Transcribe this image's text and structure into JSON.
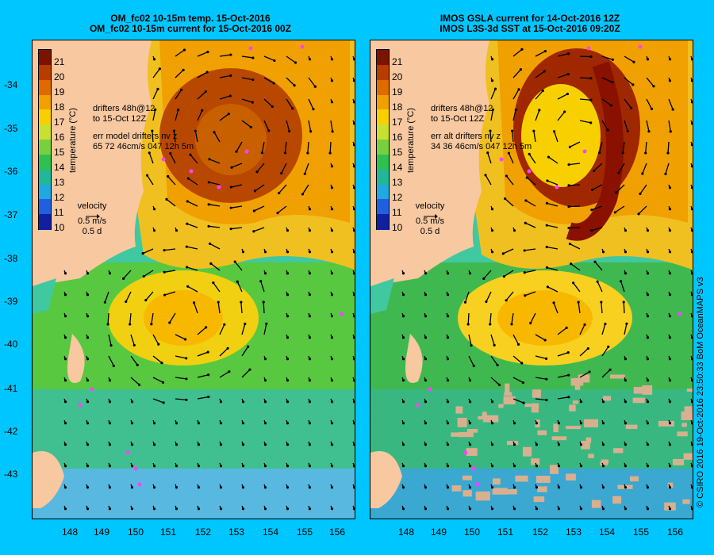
{
  "background_color": "#00c6ff",
  "land_color": "#f8c8a0",
  "left_panel": {
    "title_line1": "OM_fc02 10-15m temp. 15-Oct-2016",
    "title_line2": "OM_fc02 10-15m current for 15-Oct-2016 00Z",
    "drifters_line1": "drifters 48h@12",
    "drifters_line2": "to 15-Oct 12Z",
    "err_line1": "err model drifters nv z",
    "err_line2": "65 72 46cm/s 047 12h 5m"
  },
  "right_panel": {
    "title_line1": "IMOS GSLA current for 14-Oct-2016 12Z",
    "title_line2": "IMOS L3S-3d SST at 15-Oct-2016 09:20Z",
    "drifters_line1": "drifters 48h@12",
    "drifters_line2": "to 15-Oct 12Z",
    "err_line1": "err alt drifters nv z",
    "err_line2": "34 36 46cm/s 047 12h 5m"
  },
  "colorbar": {
    "title": "temperature (°C)",
    "labels": [
      "21",
      "20",
      "19",
      "18",
      "17",
      "16",
      "15",
      "14",
      "13",
      "12",
      "11",
      "10"
    ],
    "colors": [
      "#7a1400",
      "#b83c00",
      "#e06a00",
      "#f0a000",
      "#f8d000",
      "#c8e030",
      "#78d040",
      "#30c050",
      "#20b898",
      "#20a8e0",
      "#2060e0",
      "#1020a0"
    ]
  },
  "velocity_legend": {
    "label": "velocity",
    "speed": "0.5 m/s",
    "time": "0.5 d"
  },
  "axes": {
    "lon_labels": [
      "148",
      "149",
      "150",
      "151",
      "152",
      "153",
      "154",
      "155",
      "156"
    ],
    "lat_labels": [
      "-34",
      "-35",
      "-36",
      "-37",
      "-38",
      "-39",
      "-40",
      "-41",
      "-42",
      "-43"
    ]
  },
  "credit": "© CSIRO 2016  19-Oct-2016 23:50:33 BoM OceanMAPS v3"
}
